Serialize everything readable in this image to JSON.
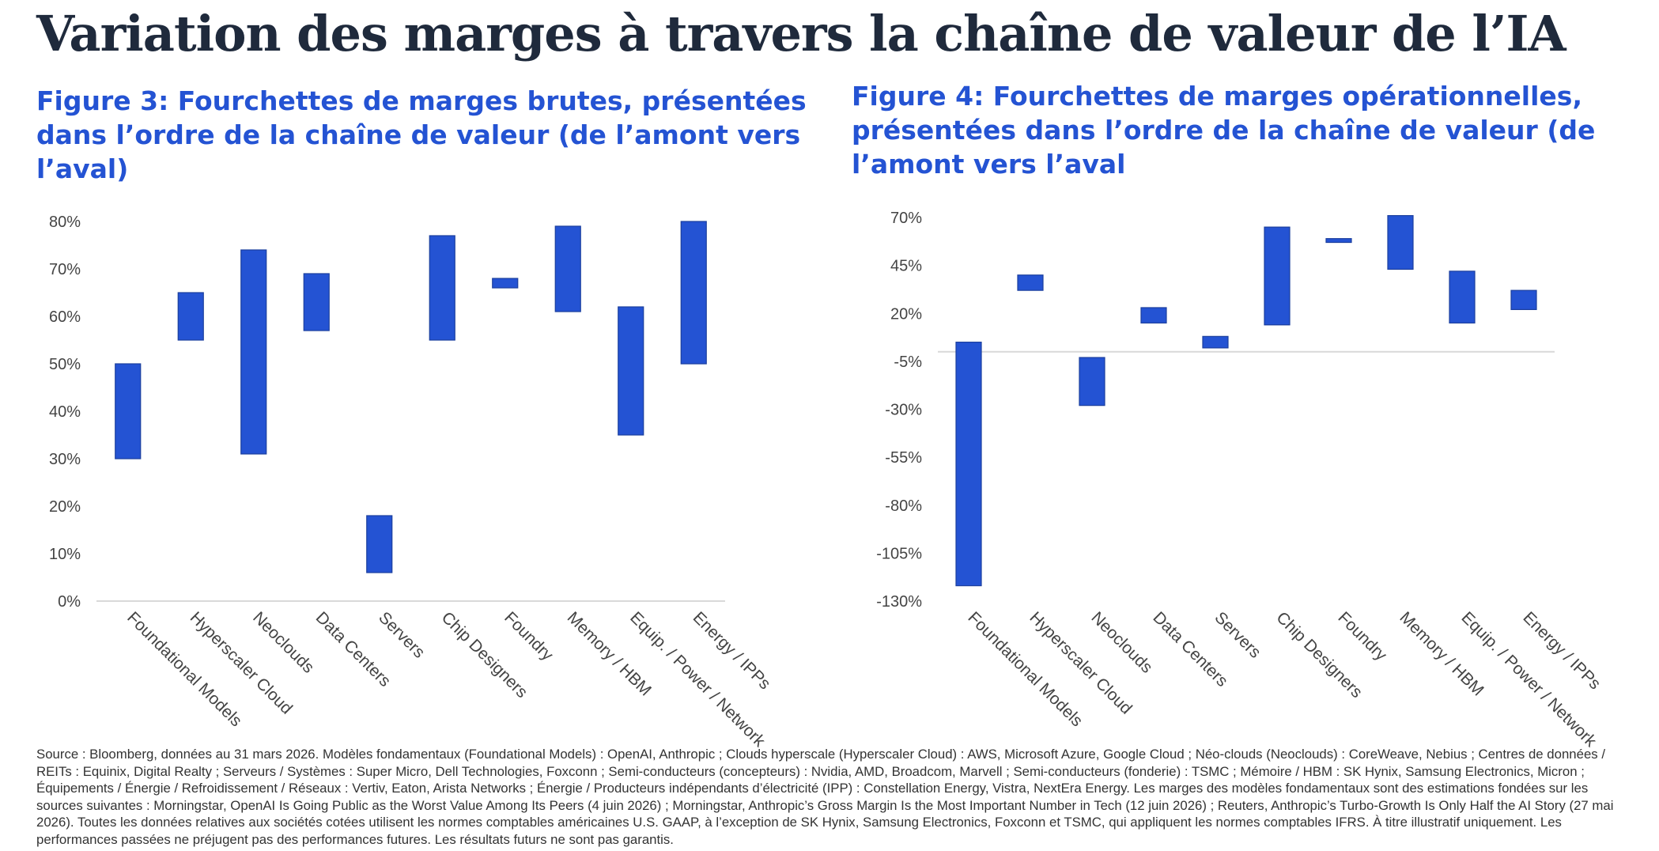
{
  "title": "Variation des marges à travers la chaîne de valeur de l’IA",
  "colors": {
    "bar": "#2453d3",
    "title": "#1f2a3c",
    "figure_title": "#2453d3",
    "axis": "#d9d9d9",
    "text": "#444444"
  },
  "footnote": "Source : Bloomberg, données au 31 mars 2026. Modèles fondamentaux (Foundational Models) : OpenAI, Anthropic ; Clouds hyperscale (Hyperscaler Cloud) : AWS, Microsoft Azure, Google Cloud ; Néo-clouds (Neoclouds) : CoreWeave, Nebius ; Centres de données / REITs : Equinix, Digital Realty ; Serveurs / Systèmes : Super Micro, Dell Technologies, Foxconn ; Semi-conducteurs (concepteurs) : Nvidia, AMD, Broadcom, Marvell ; Semi-conducteurs (fonderie) : TSMC ; Mémoire / HBM : SK Hynix, Samsung Electronics, Micron ; Équipements / Énergie / Refroidissement / Réseaux : Vertiv, Eaton, Arista Networks ; Énergie / Producteurs indépendants d’électricité (IPP) : Constellation Energy, Vistra, NextEra Energy. Les marges des modèles fondamentaux sont des estimations fondées sur les sources suivantes : Morningstar, OpenAI Is Going Public as the Worst Value Among Its Peers (4 juin 2026) ; Morningstar, Anthropic’s Gross Margin Is the Most Important Number in Tech (12 juin 2026) ; Reuters, Anthropic’s Turbo-Growth Is Only Half the AI Story (27 mai 2026). Toutes les données relatives aux sociétés cotées utilisent les normes comptables américaines U.S. GAAP, à l’exception de SK Hynix, Samsung Electronics, Foxconn et TSMC, qui appliquent les normes comptables IFRS. À titre illustratif uniquement. Les performances passées ne préjugent pas des performances futures. Les résultats futurs ne sont pas garantis.",
  "chart_data": [
    {
      "type": "bar",
      "subtype": "floating-range",
      "title": "Figure 3: Fourchettes de marges brutes, présentées dans l’ordre de la chaîne de valeur (de l’amont vers l’aval)",
      "categories": [
        "Foundational Models",
        "Hyperscaler Cloud",
        "Neoclouds",
        "Data Centers",
        "Servers",
        "Chip Designers",
        "Foundry",
        "Memory / HBM",
        "Equip. / Power / Network",
        "Energy / IPPs"
      ],
      "ranges": [
        [
          30,
          50
        ],
        [
          55,
          65
        ],
        [
          31,
          74
        ],
        [
          57,
          69
        ],
        [
          6,
          18
        ],
        [
          55,
          77
        ],
        [
          66,
          68
        ],
        [
          61,
          79
        ],
        [
          35,
          62
        ],
        [
          50,
          80
        ]
      ],
      "ylim": [
        0,
        80
      ],
      "yticks": [
        0,
        10,
        20,
        30,
        40,
        50,
        60,
        70,
        80
      ],
      "ytick_labels": [
        "0%",
        "10%",
        "20%",
        "30%",
        "40%",
        "50%",
        "60%",
        "70%",
        "80%"
      ],
      "grid": false,
      "legend": "none"
    },
    {
      "type": "bar",
      "subtype": "floating-range",
      "title": "Figure 4: Fourchettes de marges opérationnelles, présentées dans l’ordre de la chaîne de valeur (de l’amont vers l’aval",
      "categories": [
        "Foundational Models",
        "Hyperscaler Cloud",
        "Neoclouds",
        "Data Centers",
        "Servers",
        "Chip Designers",
        "Foundry",
        "Memory / HBM",
        "Equip. / Power / Network",
        "Energy / IPPs"
      ],
      "ranges": [
        [
          -122,
          5
        ],
        [
          32,
          40
        ],
        [
          -28,
          -3
        ],
        [
          15,
          23
        ],
        [
          2,
          8
        ],
        [
          14,
          65
        ],
        [
          57,
          59
        ],
        [
          43,
          71
        ],
        [
          15,
          42
        ],
        [
          22,
          32
        ]
      ],
      "ylim": [
        -130,
        70
      ],
      "yticks": [
        -130,
        -105,
        -80,
        -55,
        -30,
        -5,
        20,
        45,
        70
      ],
      "ytick_labels": [
        "-130%",
        "-105%",
        "-80%",
        "-55%",
        "-30%",
        "-5%",
        "20%",
        "45%",
        "70%"
      ],
      "zero_line": 0,
      "grid": false,
      "legend": "none"
    }
  ]
}
